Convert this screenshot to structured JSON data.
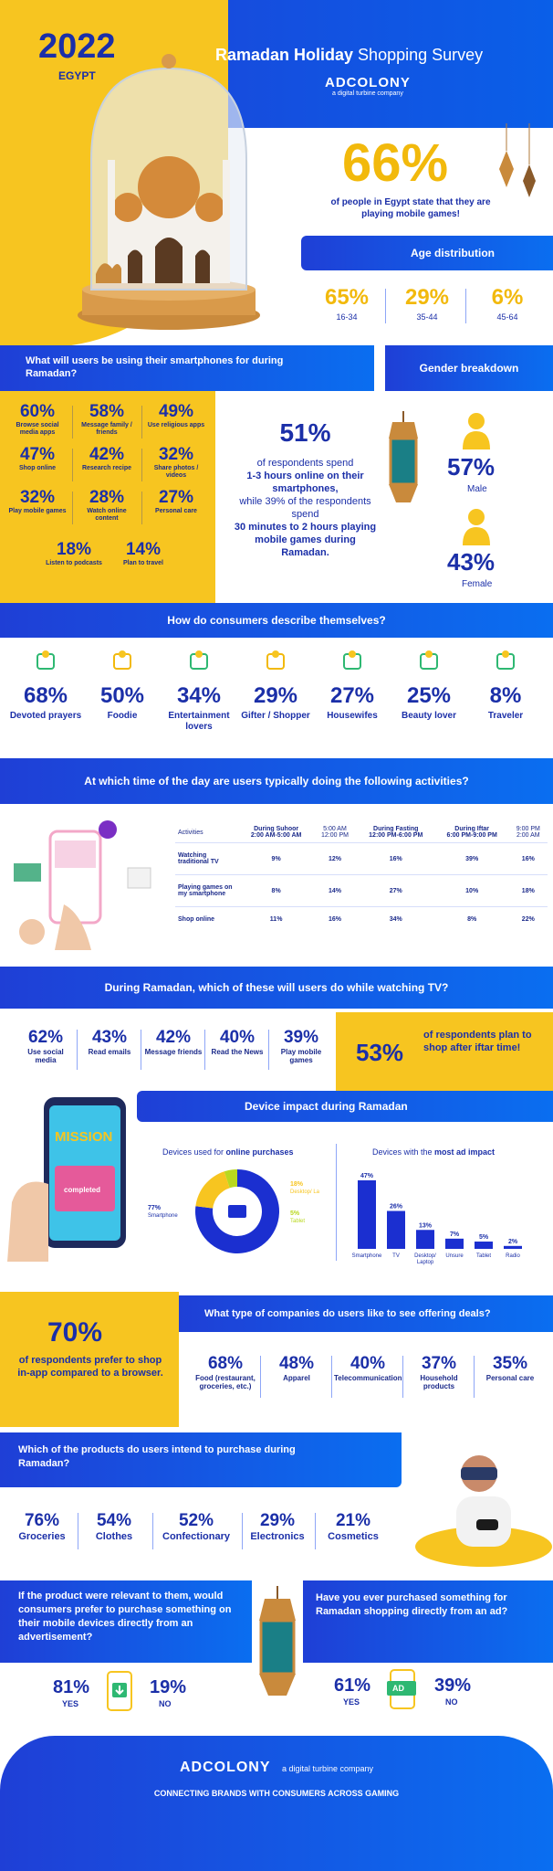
{
  "header": {
    "year": "2022",
    "country": "EGYPT",
    "title_bold": "Ramadan Holiday",
    "title_rest": " Shopping Survey",
    "brand": "ADCOLONY",
    "brand_sub": "a digital turbine company"
  },
  "hero": {
    "stat": "66%",
    "text": "of people in Egypt state that they are playing mobile games!"
  },
  "age": {
    "title": "Age distribution",
    "items": [
      {
        "value": "65%",
        "label": "16-34"
      },
      {
        "value": "29%",
        "label": "35-44"
      },
      {
        "value": "6%",
        "label": "45-64"
      }
    ]
  },
  "smartphone": {
    "title": "What will users be using their smartphones for during Ramadan?",
    "items": [
      {
        "value": "60%",
        "label": "Browse social media apps"
      },
      {
        "value": "58%",
        "label": "Message family / friends"
      },
      {
        "value": "49%",
        "label": "Use religious apps"
      },
      {
        "value": "47%",
        "label": "Shop online"
      },
      {
        "value": "42%",
        "label": "Research recipe"
      },
      {
        "value": "32%",
        "label": "Share photos / videos"
      },
      {
        "value": "32%",
        "label": "Play mobile games"
      },
      {
        "value": "28%",
        "label": "Watch online content"
      },
      {
        "value": "27%",
        "label": "Personal care"
      },
      {
        "value": "18%",
        "label": "Listen to podcasts"
      },
      {
        "value": "14%",
        "label": "Plan to travel"
      }
    ]
  },
  "time_spent": {
    "stat": "51%",
    "line1": "of respondents spend",
    "bold1": "1-3 hours online on their smartphones,",
    "line2": "while 39% of the respondents spend",
    "bold2": "30 minutes to 2 hours playing mobile games during Ramadan."
  },
  "gender": {
    "title": "Gender breakdown",
    "male_value": "57%",
    "male_label": "Male",
    "female_value": "43%",
    "female_label": "Female"
  },
  "describe": {
    "title": "How do consumers describe themselves?",
    "items": [
      {
        "value": "68%",
        "label": "Devoted prayers",
        "icon": "praying-hands-icon"
      },
      {
        "value": "50%",
        "label": "Foodie",
        "icon": "burger-icon"
      },
      {
        "value": "34%",
        "label": "Entertainment lovers",
        "icon": "gamepad-icon"
      },
      {
        "value": "29%",
        "label": "Gifter / Shopper",
        "icon": "gift-icon"
      },
      {
        "value": "27%",
        "label": "Housewifes",
        "icon": "housewife-icon"
      },
      {
        "value": "25%",
        "label": "Beauty lover",
        "icon": "beauty-bag-icon"
      },
      {
        "value": "8%",
        "label": "Traveler",
        "icon": "plane-icon"
      }
    ]
  },
  "activities": {
    "title": "At which time of the day are users typically doing the following activities?",
    "col_header": "Activities",
    "columns": [
      {
        "top": "During Suhoor",
        "bottom": "2:00 AM-5:00 AM"
      },
      {
        "top": "5:00 AM",
        "bottom": "12:00 PM"
      },
      {
        "top": "During Fasting",
        "bottom": "12:00 PM-6:00 PM"
      },
      {
        "top": "During Iftar",
        "bottom": "6:00 PM-9:00 PM"
      },
      {
        "top": "9:00 PM",
        "bottom": "2:00 AM"
      }
    ],
    "rows": [
      {
        "label": "Watching traditional TV",
        "values": [
          "9%",
          "12%",
          "16%",
          "39%",
          "16%"
        ]
      },
      {
        "label": "Playing games on my smartphone",
        "values": [
          "8%",
          "14%",
          "27%",
          "10%",
          "18%"
        ]
      },
      {
        "label": "Shop online",
        "values": [
          "11%",
          "16%",
          "34%",
          "8%",
          "22%"
        ]
      }
    ]
  },
  "tv": {
    "title": "During Ramadan, which of these will users do while watching TV?",
    "items": [
      {
        "value": "62%",
        "label": "Use social media"
      },
      {
        "value": "43%",
        "label": "Read emails"
      },
      {
        "value": "42%",
        "label": "Message friends"
      },
      {
        "value": "40%",
        "label": "Read the News"
      },
      {
        "value": "39%",
        "label": "Play mobile games"
      }
    ],
    "iftar_stat": "53%",
    "iftar_text": "of respondents plan to shop after iftar time!"
  },
  "device": {
    "title": "Device impact during Ramadan",
    "donut_title_a": "Devices used for ",
    "donut_title_b": "online purchases",
    "phone_text": "MISSION",
    "phone_sub": "completed",
    "bars_title_a": "Devices with the ",
    "bars_title_b": "most ad impact"
  },
  "chart_data": [
    {
      "type": "pie",
      "title": "Devices used for online purchases",
      "categories": [
        "Smartphone",
        "Desktop/ Laptop",
        "Tablet"
      ],
      "values": [
        77,
        18,
        5
      ],
      "colors": [
        "#1b2fd0",
        "#f7c520",
        "#b9d81f"
      ],
      "value_labels": [
        "77%",
        "18%",
        "5%"
      ]
    },
    {
      "type": "bar",
      "title": "Devices with the most ad impact",
      "categories": [
        "Smartphone",
        "TV",
        "Desktop/ Laptop",
        "Unsure",
        "Tablet",
        "Radio"
      ],
      "values": [
        47,
        26,
        13,
        7,
        5,
        2
      ],
      "value_labels": [
        "47%",
        "26%",
        "13%",
        "7%",
        "5%",
        "2%"
      ],
      "ylim": [
        0,
        47
      ],
      "color": "#1b2fd0"
    }
  ],
  "inapp": {
    "stat": "70%",
    "text": "of respondents prefer to shop in-app compared to a browser."
  },
  "companies": {
    "title": "What type of companies do users like to see offering deals?",
    "items": [
      {
        "value": "68%",
        "label": "Food (restaurant, groceries, etc.)"
      },
      {
        "value": "48%",
        "label": "Apparel"
      },
      {
        "value": "40%",
        "label": "Telecommunication"
      },
      {
        "value": "37%",
        "label": "Household products"
      },
      {
        "value": "35%",
        "label": "Personal care"
      }
    ]
  },
  "products": {
    "title": "Which of the products do users intend to purchase during Ramadan?",
    "items": [
      {
        "value": "76%",
        "label": "Groceries"
      },
      {
        "value": "54%",
        "label": "Clothes"
      },
      {
        "value": "52%",
        "label": "Confectionary"
      },
      {
        "value": "29%",
        "label": "Electronics"
      },
      {
        "value": "21%",
        "label": "Cosmetics"
      }
    ]
  },
  "ad_purchase": {
    "q1": "If the product were relevant to them, would consumers prefer to purchase something on their mobile devices directly from an advertisement?",
    "yes1": "81%",
    "no1": "19%",
    "q2": "Have you ever purchased something for Ramadan shopping directly from an ad?",
    "yes2": "61%",
    "no2": "39%",
    "yes_label": "YES",
    "no_label": "NO",
    "ad_badge": "AD"
  },
  "footer": {
    "brand": "ADCOLONY",
    "brand_sub": "a digital turbine company",
    "tagline": "CONNECTING BRANDS WITH CONSUMERS ACROSS GAMING"
  }
}
